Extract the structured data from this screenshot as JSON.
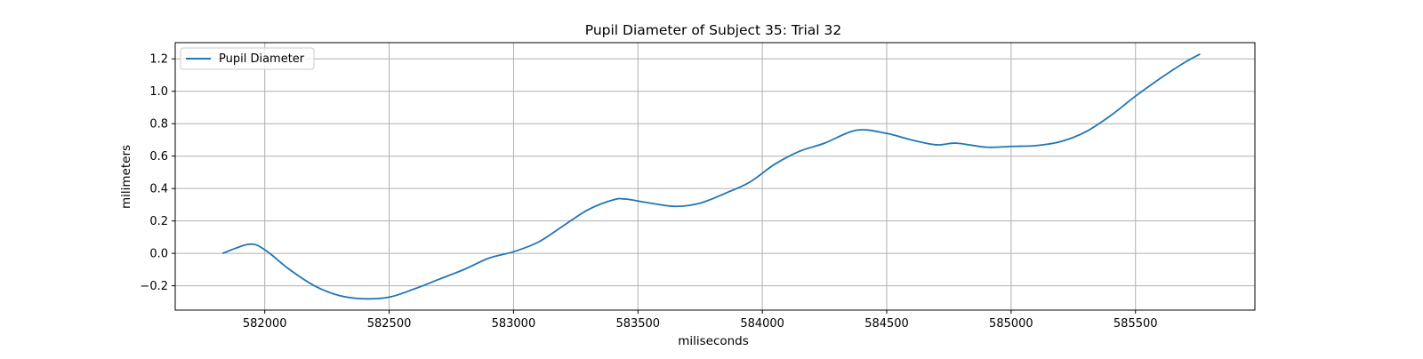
{
  "chart_data": {
    "type": "line",
    "title": "Pupil Diameter of Subject 35: Trial 32",
    "xlabel": "miliseconds",
    "ylabel": "milimeters",
    "xlim": [
      581640,
      585980
    ],
    "ylim": [
      -0.35,
      1.3
    ],
    "xticks": [
      582000,
      582500,
      583000,
      583500,
      584000,
      584500,
      585000,
      585500
    ],
    "yticks": [
      -0.2,
      0.0,
      0.2,
      0.4,
      0.6,
      0.8,
      1.0,
      1.2
    ],
    "ytick_labels": [
      "−0.2",
      "0.0",
      "0.2",
      "0.4",
      "0.6",
      "0.8",
      "1.0",
      "1.2"
    ],
    "grid": true,
    "legend_position": "upper-left",
    "series": [
      {
        "name": "Pupil Diameter",
        "color": "#1f77b4",
        "x": [
          581830,
          581880,
          581930,
          581970,
          582020,
          582100,
          582200,
          582300,
          582400,
          582500,
          582600,
          582700,
          582800,
          582900,
          583000,
          583100,
          583200,
          583300,
          583400,
          583450,
          583550,
          583650,
          583750,
          583850,
          583950,
          584050,
          584150,
          584250,
          584380,
          584500,
          584600,
          584700,
          584780,
          584900,
          585000,
          585100,
          585200,
          585300,
          585400,
          585500,
          585600,
          585700,
          585760
        ],
        "values": [
          0.0,
          0.03,
          0.055,
          0.05,
          0.0,
          -0.1,
          -0.2,
          -0.26,
          -0.28,
          -0.27,
          -0.22,
          -0.16,
          -0.1,
          -0.03,
          0.01,
          0.07,
          0.17,
          0.27,
          0.33,
          0.335,
          0.31,
          0.29,
          0.31,
          0.37,
          0.44,
          0.55,
          0.63,
          0.68,
          0.76,
          0.74,
          0.7,
          0.67,
          0.68,
          0.655,
          0.66,
          0.665,
          0.69,
          0.75,
          0.85,
          0.97,
          1.08,
          1.18,
          1.23
        ]
      }
    ]
  }
}
